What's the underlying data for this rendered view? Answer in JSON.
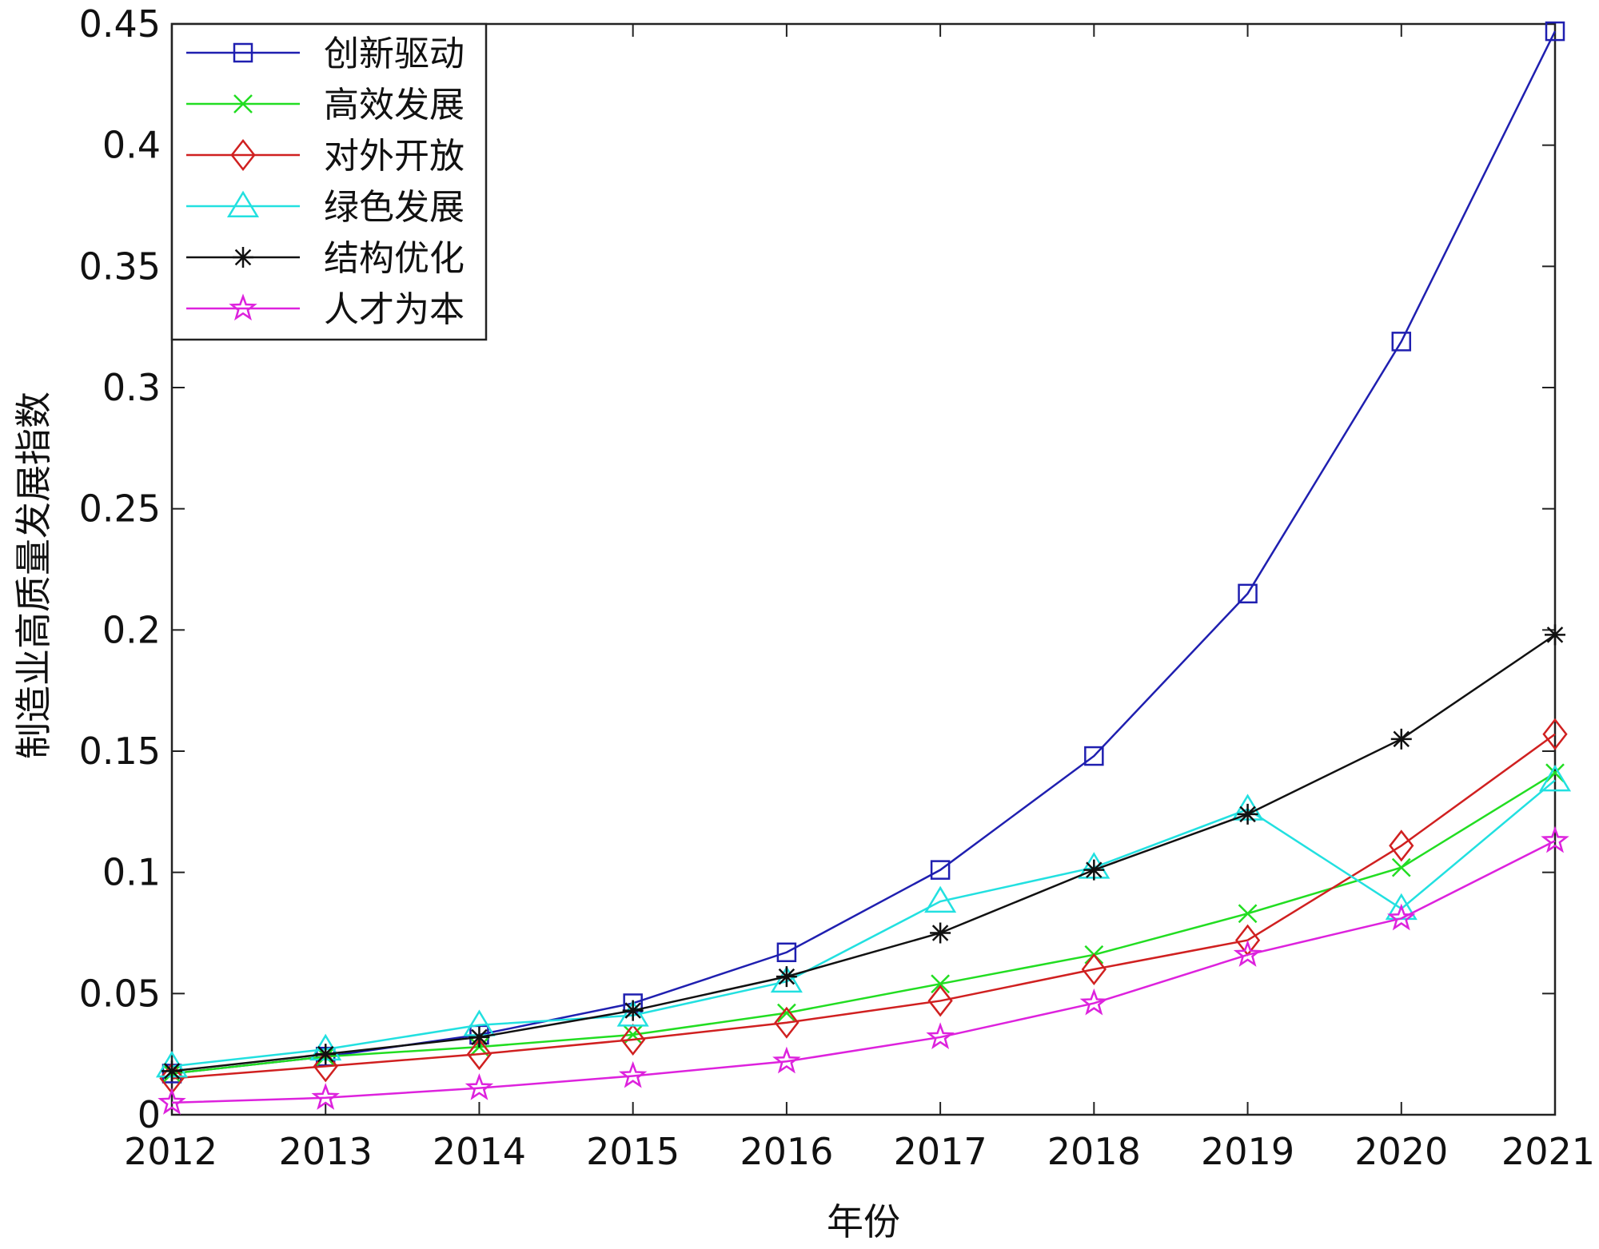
{
  "chart_data": {
    "type": "line",
    "title": "",
    "xlabel": "年份",
    "ylabel": "制造业高质量发展指数",
    "categories": [
      "2012",
      "2013",
      "2014",
      "2015",
      "2016",
      "2017",
      "2018",
      "2019",
      "2020",
      "2021"
    ],
    "ylim": [
      0,
      0.45
    ],
    "yticks": [
      0,
      0.05,
      0.1,
      0.15,
      0.2,
      0.25,
      0.3,
      0.35,
      0.4,
      0.45
    ],
    "ytick_labels": [
      "0",
      "0.05",
      "0.1",
      "0.15",
      "0.2",
      "0.25",
      "0.3",
      "0.35",
      "0.4",
      "0.45"
    ],
    "grid": false,
    "legend_position": "top-left",
    "series": [
      {
        "name": "创新驱动",
        "color": "#1f1fb0",
        "marker": "square",
        "values": [
          0.017,
          0.024,
          0.033,
          0.046,
          0.067,
          0.101,
          0.148,
          0.215,
          0.319,
          0.447
        ]
      },
      {
        "name": "高效发展",
        "color": "#22dd22",
        "marker": "x",
        "values": [
          0.017,
          0.024,
          0.028,
          0.033,
          0.042,
          0.054,
          0.066,
          0.083,
          0.102,
          0.141
        ]
      },
      {
        "name": "对外开放",
        "color": "#d02020",
        "marker": "diamond",
        "values": [
          0.015,
          0.02,
          0.025,
          0.031,
          0.038,
          0.047,
          0.06,
          0.072,
          0.111,
          0.157
        ]
      },
      {
        "name": "绿色发展",
        "color": "#22e0e0",
        "marker": "triangle",
        "values": [
          0.02,
          0.027,
          0.037,
          0.041,
          0.055,
          0.088,
          0.102,
          0.126,
          0.085,
          0.138
        ]
      },
      {
        "name": "结构优化",
        "color": "#111111",
        "marker": "asterisk",
        "values": [
          0.018,
          0.025,
          0.032,
          0.043,
          0.057,
          0.075,
          0.101,
          0.124,
          0.155,
          0.198
        ]
      },
      {
        "name": "人才为本",
        "color": "#dd22dd",
        "marker": "star",
        "values": [
          0.005,
          0.007,
          0.011,
          0.016,
          0.022,
          0.032,
          0.046,
          0.066,
          0.081,
          0.113
        ]
      }
    ]
  }
}
